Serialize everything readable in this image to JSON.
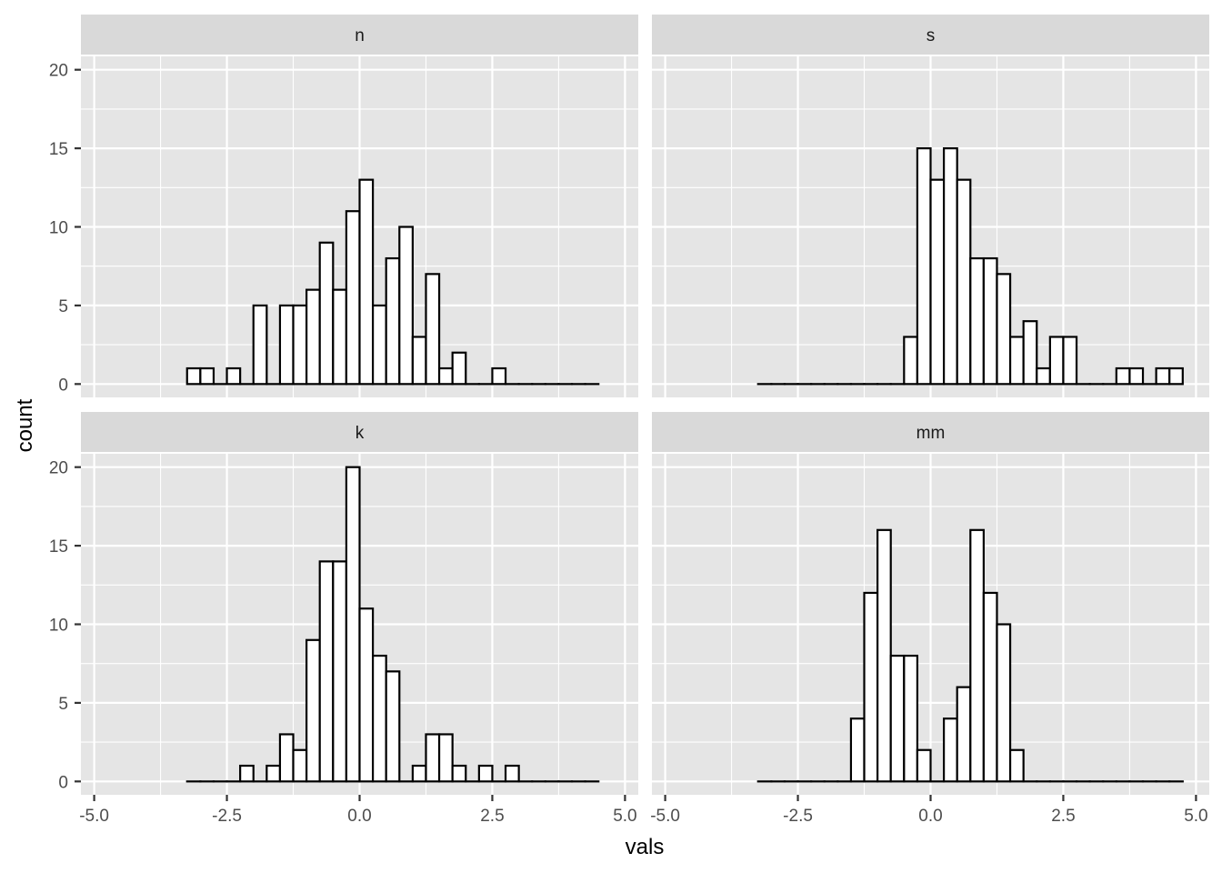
{
  "chart_data": {
    "type": "bar",
    "xlabel": "vals",
    "ylabel": "count",
    "xlim": [
      -5.25,
      5.25
    ],
    "ylim": [
      -0.85,
      20.85
    ],
    "x_ticks": [
      "-5.0",
      "-2.5",
      "0.0",
      "2.5",
      "5.0"
    ],
    "y_ticks": [
      "0",
      "5",
      "10",
      "15",
      "20"
    ],
    "x_tick_values": [
      -5,
      -2.5,
      0,
      2.5,
      5
    ],
    "y_tick_values": [
      0,
      5,
      10,
      15,
      20
    ],
    "bin_start": -3.25,
    "bin_width": 0.25,
    "grid": true,
    "panels": [
      {
        "label": "n",
        "counts": [
          1,
          1,
          0,
          1,
          0,
          5,
          0,
          5,
          5,
          6,
          9,
          6,
          11,
          13,
          5,
          8,
          10,
          3,
          7,
          1,
          2,
          0,
          0,
          1,
          0,
          0,
          0,
          0,
          0,
          0,
          0
        ]
      },
      {
        "label": "s",
        "counts": [
          0,
          0,
          0,
          0,
          0,
          0,
          0,
          0,
          0,
          0,
          0,
          3,
          15,
          13,
          15,
          13,
          8,
          8,
          7,
          3,
          4,
          1,
          3,
          3,
          0,
          0,
          0,
          1,
          1,
          0,
          1,
          1
        ]
      },
      {
        "label": "k",
        "counts": [
          0,
          0,
          0,
          0,
          1,
          0,
          1,
          3,
          2,
          9,
          14,
          14,
          20,
          11,
          8,
          7,
          0,
          1,
          3,
          3,
          1,
          0,
          1,
          0,
          1,
          0,
          0,
          0,
          0,
          0,
          0
        ]
      },
      {
        "label": "mm",
        "counts": [
          0,
          0,
          0,
          0,
          0,
          0,
          0,
          4,
          12,
          16,
          8,
          8,
          2,
          0,
          4,
          6,
          16,
          12,
          10,
          2,
          0,
          0,
          0,
          0,
          0,
          0,
          0,
          0,
          0,
          0,
          0,
          0
        ]
      }
    ]
  },
  "colors": {
    "panel_background": "#e5e5e5",
    "strip_background": "#d9d9d9",
    "grid": "#ffffff",
    "bar_fill": "#ffffff",
    "bar_outline": "#000000"
  }
}
